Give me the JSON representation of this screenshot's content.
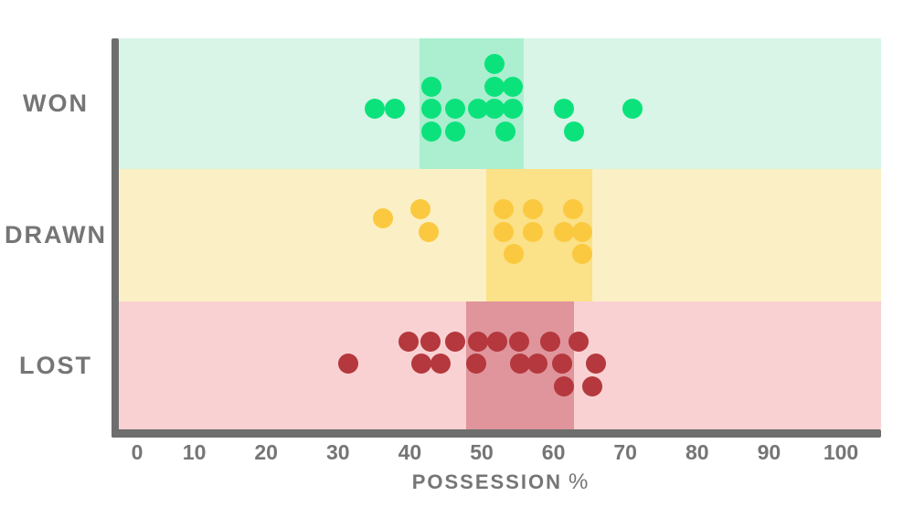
{
  "chart_data": {
    "type": "scatter",
    "subtype": "dot-strip-plot",
    "xlabel": "POSSESSION",
    "xlabel_suffix": "%",
    "x_ticks": [
      0,
      10,
      20,
      30,
      40,
      50,
      60,
      70,
      80,
      90,
      100
    ],
    "xlim": [
      -1,
      105.6
    ],
    "grid": false,
    "legend": "none",
    "categories": [
      "WON",
      "DRAWN",
      "LOST"
    ],
    "series": [
      {
        "name": "WON",
        "values": [
          35,
          38,
          43,
          43,
          43,
          46,
          46,
          50,
          52,
          52,
          52,
          53,
          54,
          54,
          62,
          63,
          71
        ],
        "highlight_range": [
          41.4,
          55.8
        ],
        "points": [
          [
            35.1,
            0
          ],
          [
            37.9,
            0
          ],
          [
            43.0,
            1
          ],
          [
            43.0,
            0
          ],
          [
            43.0,
            -1
          ],
          [
            46.3,
            0
          ],
          [
            46.3,
            -1
          ],
          [
            49.5,
            0
          ],
          [
            51.8,
            2
          ],
          [
            51.8,
            1
          ],
          [
            51.8,
            0
          ],
          [
            54.3,
            1
          ],
          [
            54.3,
            0
          ],
          [
            53.3,
            -1
          ],
          [
            61.5,
            0
          ],
          [
            62.8,
            -1
          ],
          [
            71.0,
            0
          ]
        ]
      },
      {
        "name": "DRAWN",
        "values": [
          36,
          42,
          43,
          53,
          53,
          55,
          57,
          57,
          62,
          63,
          64,
          64
        ],
        "highlight_range": [
          50.6,
          65.4
        ],
        "points": [
          [
            36.3,
            0.6
          ],
          [
            41.5,
            1
          ],
          [
            42.6,
            0
          ],
          [
            53.1,
            1
          ],
          [
            57.1,
            1
          ],
          [
            62.7,
            1
          ],
          [
            53.1,
            0
          ],
          [
            57.1,
            0
          ],
          [
            61.5,
            0
          ],
          [
            64.0,
            0
          ],
          [
            54.5,
            -1
          ],
          [
            64.0,
            -1
          ]
        ]
      },
      {
        "name": "LOST",
        "values": [
          31,
          40,
          42,
          43,
          44,
          46,
          49,
          50,
          52,
          55,
          55,
          58,
          60,
          61,
          62,
          64,
          65,
          66
        ],
        "highlight_range": [
          47.8,
          62.8
        ],
        "points": [
          [
            39.8,
            1
          ],
          [
            42.9,
            1
          ],
          [
            46.3,
            1
          ],
          [
            49.5,
            1
          ],
          [
            52.2,
            1
          ],
          [
            55.2,
            1
          ],
          [
            59.5,
            1
          ],
          [
            63.5,
            1
          ],
          [
            31.4,
            0
          ],
          [
            41.6,
            0
          ],
          [
            44.3,
            0
          ],
          [
            49.2,
            0
          ],
          [
            55.3,
            0
          ],
          [
            57.8,
            0
          ],
          [
            61.2,
            0
          ],
          [
            65.9,
            0
          ],
          [
            61.5,
            -1
          ],
          [
            65.4,
            -1
          ]
        ]
      }
    ]
  },
  "colors": {
    "won_band": "#d8f5e7",
    "won_highlight": "#abefd0",
    "won_dot": "#0ce27c",
    "drawn_band": "#fbf0c5",
    "drawn_highlight": "#fbe187",
    "drawn_dot": "#fbc940",
    "lost_band": "#f9d1d3",
    "lost_highlight": "#e0949b",
    "lost_dot": "#b4383d",
    "axis": "#6e6e6e",
    "text": "#757575"
  }
}
